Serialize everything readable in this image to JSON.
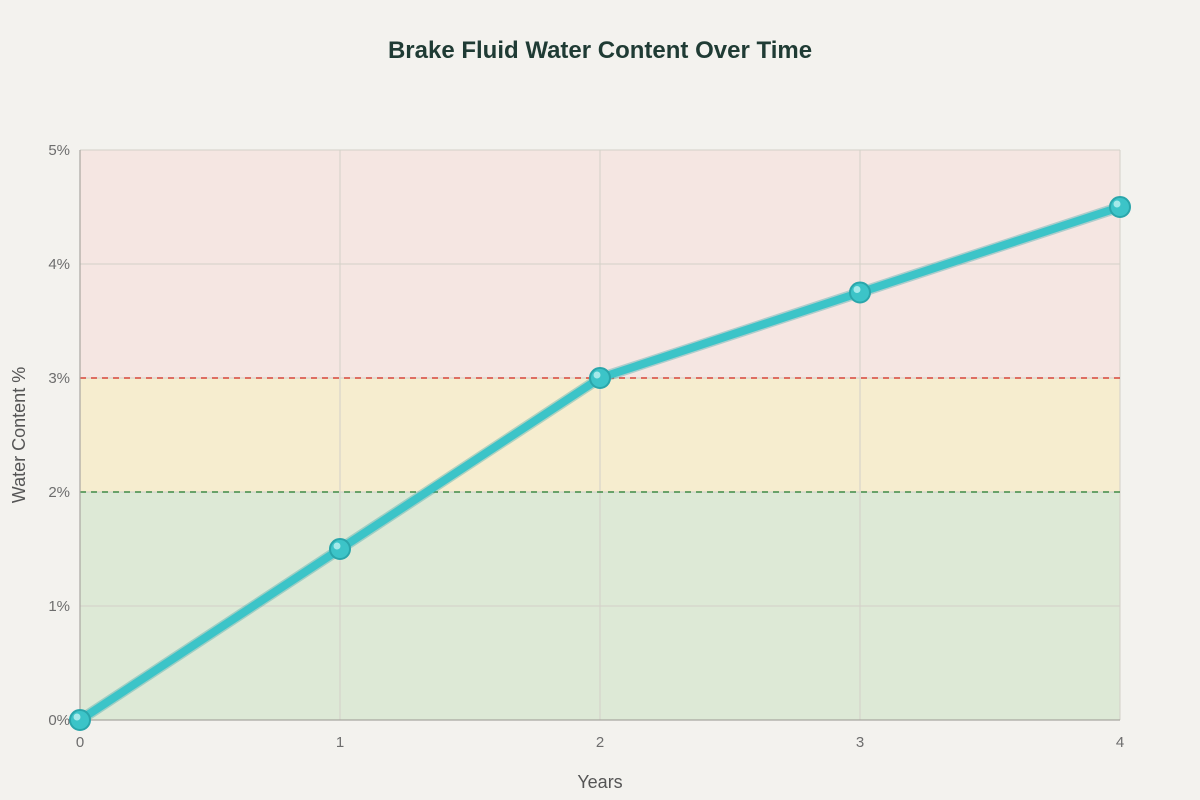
{
  "chart_data": {
    "type": "line",
    "title": "Brake Fluid Water Content Over Time",
    "xlabel": "Years",
    "ylabel": "Water Content %",
    "x": [
      0,
      1,
      2,
      3,
      4
    ],
    "x_tick_labels": [
      "0",
      "1",
      "2",
      "3",
      "4"
    ],
    "y_ticks": [
      0,
      1,
      2,
      3,
      4,
      5
    ],
    "y_tick_labels": [
      "0%",
      "1%",
      "2%",
      "3%",
      "4%",
      "5%"
    ],
    "xlim": [
      0,
      4
    ],
    "ylim": [
      0,
      5
    ],
    "grid": true,
    "series": [
      {
        "values": [
          0,
          1.5,
          3.0,
          3.75,
          4.5
        ],
        "color": "#3cc4c8"
      }
    ],
    "bands": [
      {
        "from": 0,
        "to": 2,
        "color": "#dde9d6"
      },
      {
        "from": 2,
        "to": 3,
        "color": "#f6edcf"
      },
      {
        "from": 3,
        "to": 5,
        "color": "#f5e6e2"
      }
    ],
    "thresholds": [
      {
        "value": 2,
        "color": "#3e8a47"
      },
      {
        "value": 3,
        "color": "#d6453a"
      }
    ]
  }
}
